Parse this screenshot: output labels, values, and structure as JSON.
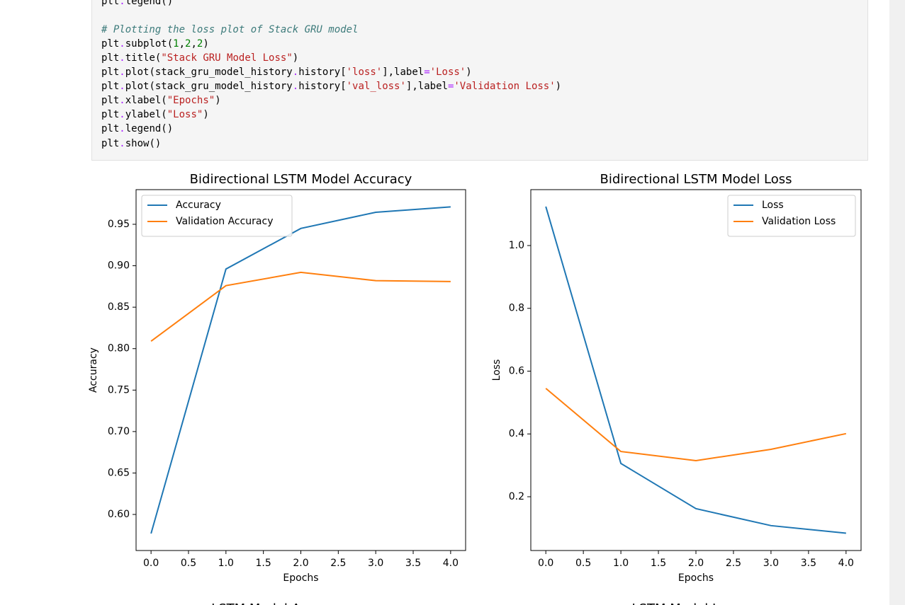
{
  "code": {
    "lines": [
      "plt.legend()",
      "# Plotting the loss plot of Stack GRU model",
      "plt.subplot(1,2,2)",
      "plt.title(\"Stack GRU Model Loss\")",
      "plt.plot(stack_gru_model_history.history['loss'],label='Loss')",
      "plt.plot(stack_gru_model_history.history['val_loss'],label='Validation Loss')",
      "plt.xlabel(\"Epochs\")",
      "plt.ylabel(\"Loss\")",
      "plt.legend()",
      "plt.show()"
    ]
  },
  "chart_data": [
    {
      "type": "line",
      "title": "Bidirectional LSTM Model Accuracy",
      "x_label": "Epochs",
      "y_label": "Accuracy",
      "x": [
        0,
        1,
        2,
        3,
        4
      ],
      "series": [
        {
          "name": "Accuracy",
          "color": "#1f77b4",
          "values": [
            0.577,
            0.896,
            0.945,
            0.9645,
            0.971
          ]
        },
        {
          "name": "Validation Accuracy",
          "color": "#ff7f0e",
          "values": [
            0.809,
            0.876,
            0.892,
            0.882,
            0.881
          ]
        }
      ],
      "xlim": [
        -0.2,
        4.2
      ],
      "xticks": [
        {
          "value": 0,
          "label": "0.0"
        },
        0.5,
        {
          "value": 1,
          "label": "1.0"
        },
        1.5,
        {
          "value": 2,
          "label": "2.0"
        },
        2.5,
        {
          "value": 3,
          "label": "3.0"
        },
        3.5,
        {
          "value": 4,
          "label": "4.0"
        }
      ],
      "ylim": [
        0.5565,
        0.9918
      ],
      "yticks": [
        {
          "value": 0.6,
          "label": "0.60"
        },
        0.65,
        {
          "value": 0.7,
          "label": "0.70"
        },
        0.75,
        {
          "value": 0.8,
          "label": "0.80"
        },
        0.85,
        {
          "value": 0.9,
          "label": "0.90"
        },
        0.95
      ],
      "legend": "upper left",
      "grid": false
    },
    {
      "type": "line",
      "title": "Bidirectional LSTM Model Loss",
      "x_label": "Epochs",
      "y_label": "Loss",
      "x": [
        0,
        1,
        2,
        3,
        4
      ],
      "series": [
        {
          "name": "Loss",
          "color": "#1f77b4",
          "values": [
            1.124,
            0.306,
            0.162,
            0.108,
            0.084
          ]
        },
        {
          "name": "Validation Loss",
          "color": "#ff7f0e",
          "values": [
            0.545,
            0.344,
            0.315,
            0.351,
            0.401
          ]
        }
      ],
      "xlim": [
        -0.2,
        4.2
      ],
      "xticks": [
        {
          "value": 0,
          "label": "0.0"
        },
        0.5,
        {
          "value": 1,
          "label": "1.0"
        },
        1.5,
        {
          "value": 2,
          "label": "2.0"
        },
        2.5,
        {
          "value": 3,
          "label": "3.0"
        },
        3.5,
        {
          "value": 4,
          "label": "4.0"
        }
      ],
      "ylim": [
        0.0287,
        1.178
      ],
      "yticks": [
        0.2,
        0.4,
        0.6,
        0.8,
        {
          "value": 1,
          "label": "1.0"
        }
      ],
      "legend": "upper right",
      "grid": false
    }
  ],
  "next_chart_titles": [
    "LSTM Model Accuracy",
    "LSTM Model Loss"
  ]
}
